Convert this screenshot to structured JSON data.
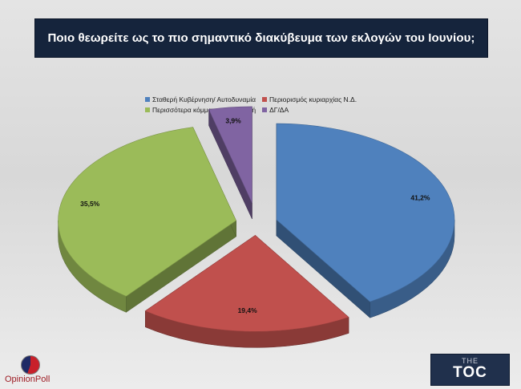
{
  "title": "Ποιο θεωρείτε ως το πιο σημαντικό διακύβευμα των εκλογών του Ιουνίου;",
  "logos": {
    "left": "OpinionPoll",
    "right_top": "THE",
    "right_main": "TOC"
  },
  "chart_data": {
    "type": "pie",
    "labels": [
      "Σταθερή Κυβέρνηση/ Αυτοδυναμία",
      "Περιορισμός κυριαρχίας Ν.Δ.",
      "Περισσότερα κόμματα στην Βουλή",
      "ΔΓ/ΔΑ"
    ],
    "values": [
      41.2,
      19.4,
      35.5,
      3.9
    ],
    "value_labels": [
      "41,2%",
      "19,4%",
      "35,5%",
      "3,9%"
    ],
    "colors": [
      "#4f81bd",
      "#c0504d",
      "#9bbb59",
      "#8064a2"
    ],
    "legend": "top"
  }
}
